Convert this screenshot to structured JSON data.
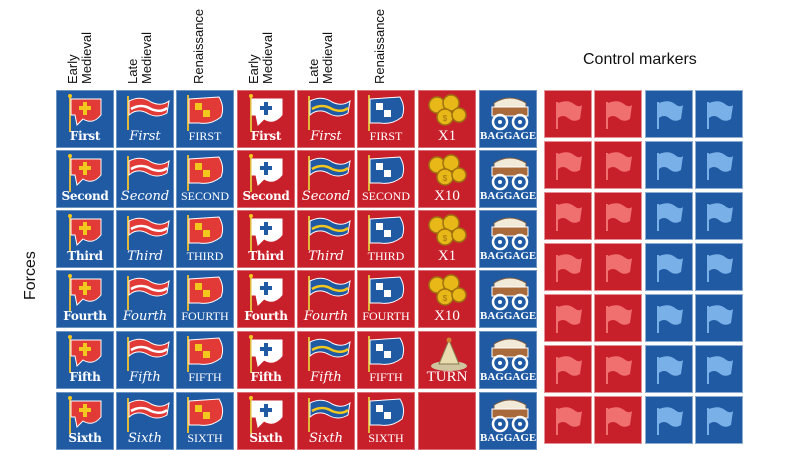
{
  "column_headers": [
    {
      "line1": "Early",
      "line2": "Medieval"
    },
    {
      "line1": "Late",
      "line2": "Medieval"
    },
    {
      "line1": "Renaissance",
      "line2": ""
    },
    {
      "line1": "Early",
      "line2": "Medieval"
    },
    {
      "line1": "Late",
      "line2": "Medieval"
    },
    {
      "line1": "Renaissance",
      "line2": ""
    }
  ],
  "side_label": "Forces",
  "control_title": "Control markers",
  "colors": {
    "blue": "#1f5aa3",
    "red": "#c8202a",
    "gold": "#e8b818",
    "flag_red": "#e23a36",
    "flag_yellow": "#f2c81e"
  },
  "forces": [
    {
      "labels": [
        "First",
        "First",
        "FIRST",
        "First",
        "First",
        "FIRST"
      ]
    },
    {
      "labels": [
        "Second",
        "Second",
        "SECOND",
        "Second",
        "Second",
        "SECOND"
      ]
    },
    {
      "labels": [
        "Third",
        "Third",
        "THIRD",
        "Third",
        "Third",
        "THIRD"
      ]
    },
    {
      "labels": [
        "Fourth",
        "Fourth",
        "FOURTH",
        "Fourth",
        "Fourth",
        "FOURTH"
      ]
    },
    {
      "labels": [
        "Fifth",
        "Fifth",
        "FIFTH",
        "Fifth",
        "Fifth",
        "FIFTH"
      ]
    },
    {
      "labels": [
        "Sixth",
        "Sixth",
        "SIXTH",
        "Sixth",
        "Sixth",
        "SIXTH"
      ]
    }
  ],
  "treasury": [
    {
      "label": "X1",
      "icon": "coins-icon"
    },
    {
      "label": "X10",
      "icon": "coins-icon"
    },
    {
      "label": "X1",
      "icon": "coins-icon"
    },
    {
      "label": "X10",
      "icon": "coins-icon"
    },
    {
      "label": "TURN",
      "icon": "hourglass-icon"
    },
    {
      "label": "",
      "icon": ""
    }
  ],
  "baggage": [
    "BAGGAGE",
    "BAGGAGE",
    "BAGGAGE",
    "BAGGAGE",
    "BAGGAGE",
    "BAGGAGE"
  ],
  "control_markers": {
    "rows": 7,
    "red_columns": 2,
    "blue_columns": 2
  }
}
